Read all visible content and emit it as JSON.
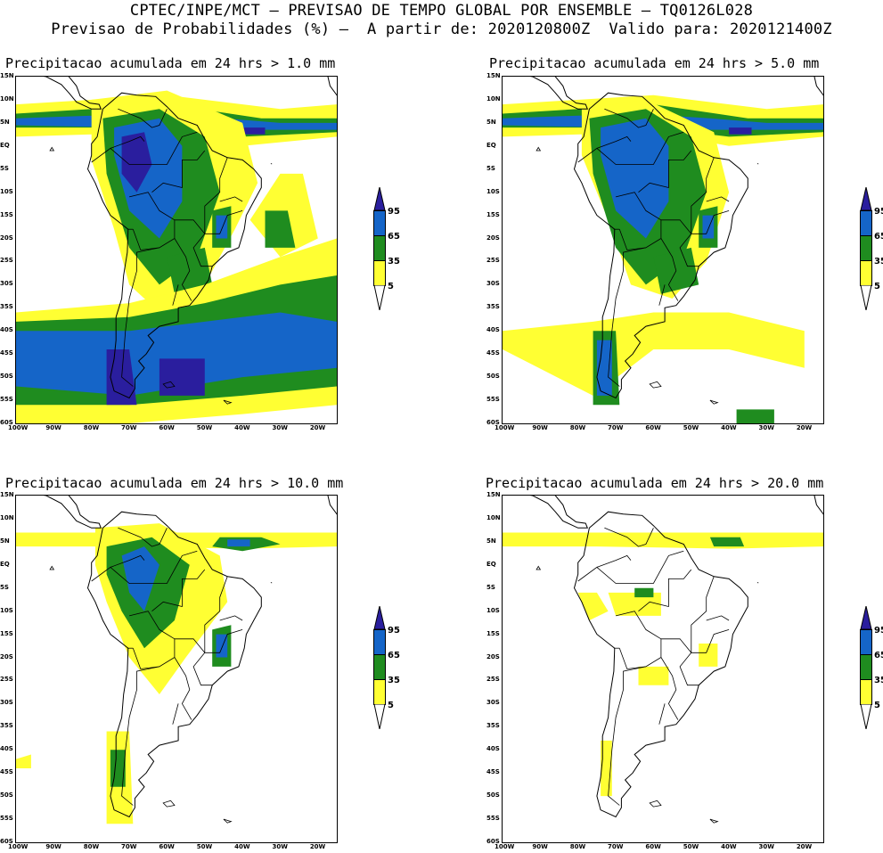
{
  "header": {
    "line1": "CPTEC/INPE/MCT – PREVISAO DE TEMPO GLOBAL POR ENSEMBLE – TQ0126L028",
    "line2": "Previsao de Probabilidades (%) –  A partir de: 2020120800Z  Valido para: 2020121400Z"
  },
  "lat_labels": [
    "15N",
    "10N",
    "5N",
    "EQ",
    "5S",
    "10S",
    "15S",
    "20S",
    "25S",
    "30S",
    "35S",
    "40S",
    "45S",
    "50S",
    "55S",
    "60S"
  ],
  "lon_labels": [
    "100W",
    "90W",
    "80W",
    "70W",
    "60W",
    "50W",
    "40W",
    "30W",
    "20W"
  ],
  "colorbar": {
    "labels": [
      "95",
      "65",
      "35",
      "5"
    ],
    "colors": {
      "c95": "#2a1e9e",
      "c65": "#1565c8",
      "c35": "#1f8c1f",
      "c5": "#ffff33"
    }
  },
  "panels": [
    {
      "title": "Precipitacao acumulada em 24 hrs > 1.0 mm",
      "level": 4
    },
    {
      "title": "Precipitacao acumulada em 24 hrs > 5.0 mm",
      "level": 3
    },
    {
      "title": "Precipitacao acumulada em 24 hrs > 10.0 mm",
      "level": 2
    },
    {
      "title": "Precipitacao acumulada em 24 hrs > 20.0 mm",
      "level": 1
    }
  ]
}
